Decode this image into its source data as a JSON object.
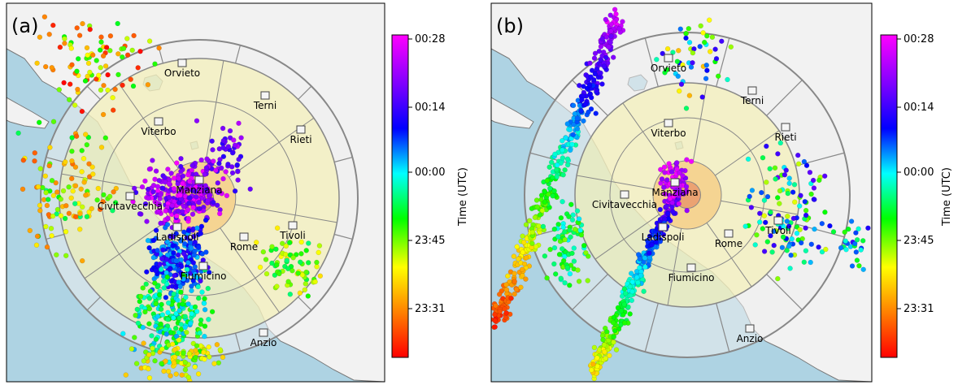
{
  "panels": [
    {
      "id": "a",
      "label": "(a)",
      "center_town": "Manziana",
      "towns": [
        {
          "name": "Orvieto"
        },
        {
          "name": "Terni"
        },
        {
          "name": "Viterbo"
        },
        {
          "name": "Rieti"
        },
        {
          "name": "Civitavecchia"
        },
        {
          "name": "Manziana"
        },
        {
          "name": "Ladispoli"
        },
        {
          "name": "Rome"
        },
        {
          "name": "Tivoli"
        },
        {
          "name": "Fiumicino"
        },
        {
          "name": "Anzio"
        }
      ],
      "colorbar": {
        "title": "Time (UTC)",
        "ticks": [
          "00:28",
          "00:14",
          "00:00",
          "23:45",
          "23:31"
        ]
      }
    },
    {
      "id": "b",
      "label": "(b)",
      "center_town": "Manziana",
      "towns": [
        {
          "name": "Orvieto"
        },
        {
          "name": "Terni"
        },
        {
          "name": "Viterbo"
        },
        {
          "name": "Rieti"
        },
        {
          "name": "Civitavecchia"
        },
        {
          "name": "Manziana"
        },
        {
          "name": "Ladispoli"
        },
        {
          "name": "Rome"
        },
        {
          "name": "Tivoli"
        },
        {
          "name": "Fiumicino"
        },
        {
          "name": "Anzio"
        }
      ],
      "colorbar": {
        "title": "Time (UTC)",
        "ticks": [
          "00:28",
          "00:14",
          "00:00",
          "23:45",
          "23:31"
        ]
      }
    }
  ],
  "colors": {
    "sea": "#aed3e3",
    "land": "#f2f2f2",
    "ring_outer": "#eeeeee",
    "ring_middle": "#f5f0a8",
    "ring_inner": "#f5c87a",
    "ring_core": "#e8956a",
    "colormap": [
      "#ff0000",
      "#ff8000",
      "#ffff00",
      "#00ff00",
      "#00ffff",
      "#0000ff",
      "#8000ff",
      "#ff00ff"
    ]
  }
}
